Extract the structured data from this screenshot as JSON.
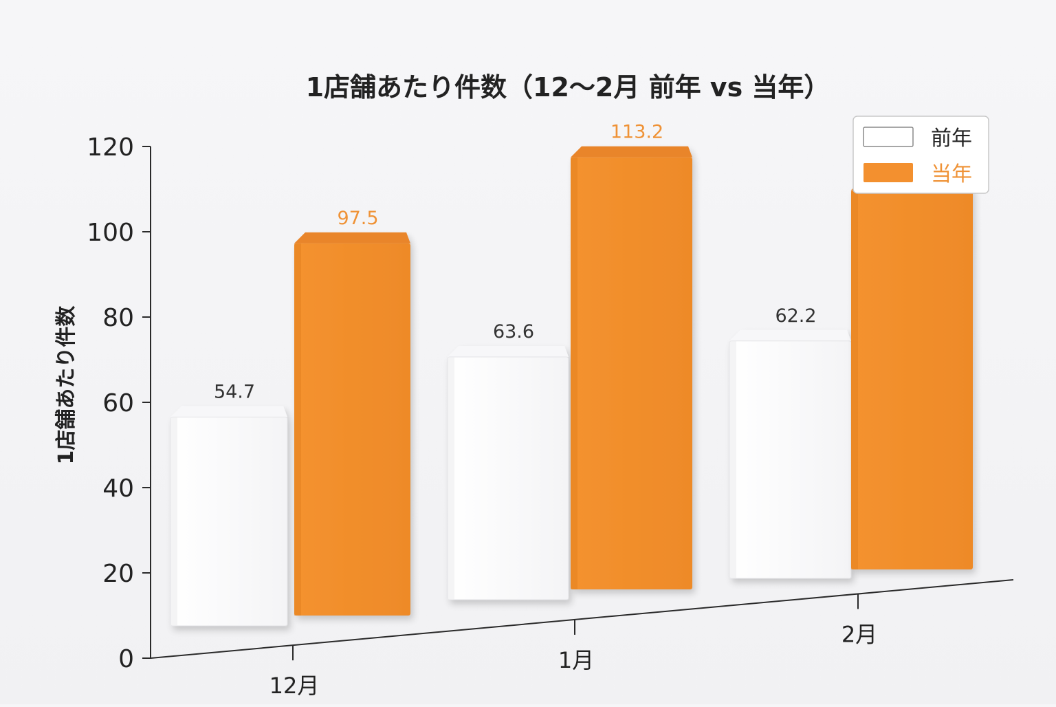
{
  "chart_data": {
    "type": "bar",
    "title": "1店舗あたり件数（12〜2月 前年 vs 当年）",
    "xlabel": "",
    "ylabel": "1店舗あたり件数",
    "categories": [
      "12月",
      "1月",
      "2月"
    ],
    "series": [
      {
        "name": "前年",
        "values": [
          54.7,
          63.6,
          62.2
        ],
        "color": "#ffffff",
        "label_color": "#333333"
      },
      {
        "name": "当年",
        "values": [
          97.5,
          113.2,
          99.4
        ],
        "color": "#f3902f",
        "label_color": "#ef9236"
      }
    ],
    "ylim": [
      0,
      120
    ],
    "yticks": [
      0,
      20,
      40,
      60,
      80,
      100,
      120
    ],
    "grid": false,
    "legend_position": "top-right",
    "style": "3d-bars"
  }
}
